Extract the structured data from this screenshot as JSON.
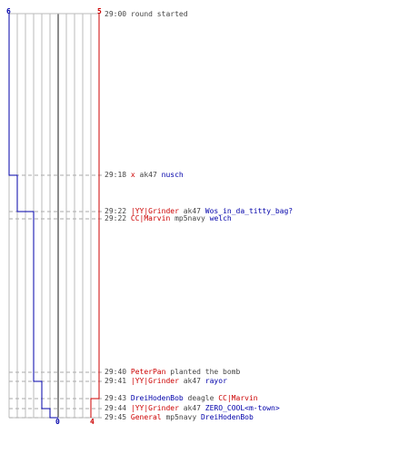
{
  "colors": {
    "blue_team": "#0000aa",
    "red_team": "#cc0000",
    "neutral_text": "#444444",
    "grid": "#bbbbbb",
    "center_line": "#666666",
    "dashed": "#aaaaaa"
  },
  "scores": {
    "blue_start": "6",
    "red_start": "5",
    "blue_end": "0",
    "red_end": "4"
  },
  "events": [
    {
      "time": "29:00",
      "segments": [
        {
          "text": "round started",
          "color": "neutral"
        }
      ]
    },
    {
      "time": "29:18",
      "segments": [
        {
          "text": "x",
          "color": "red"
        },
        {
          "text": " ak47 ",
          "color": "neutral"
        },
        {
          "text": "nusch",
          "color": "blue"
        }
      ]
    },
    {
      "time": "29:22",
      "segments": [
        {
          "text": "|YY|Grinder",
          "color": "red"
        },
        {
          "text": " ak47 ",
          "color": "neutral"
        },
        {
          "text": "Wos_in_da_titty_bag?",
          "color": "blue"
        }
      ]
    },
    {
      "time": "29:22",
      "segments": [
        {
          "text": "CC|Marvin",
          "color": "red"
        },
        {
          "text": " mp5navy ",
          "color": "neutral"
        },
        {
          "text": "welch",
          "color": "blue"
        }
      ]
    },
    {
      "time": "29:40",
      "segments": [
        {
          "text": "PeterPan",
          "color": "red"
        },
        {
          "text": " planted the bomb",
          "color": "neutral"
        }
      ]
    },
    {
      "time": "29:41",
      "segments": [
        {
          "text": "|YY|Grinder",
          "color": "red"
        },
        {
          "text": " ak47 ",
          "color": "neutral"
        },
        {
          "text": "rayor",
          "color": "blue"
        }
      ]
    },
    {
      "time": "29:43",
      "segments": [
        {
          "text": "DreiHodenBob",
          "color": "blue"
        },
        {
          "text": " deagle ",
          "color": "neutral"
        },
        {
          "text": "CC|Marvin",
          "color": "red"
        }
      ]
    },
    {
      "time": "29:44",
      "segments": [
        {
          "text": "|YY|Grinder",
          "color": "red"
        },
        {
          "text": " ak47 ",
          "color": "neutral"
        },
        {
          "text": "ZERO_COOL<m-town>",
          "color": "blue"
        }
      ]
    },
    {
      "time": "29:45",
      "segments": [
        {
          "text": "General",
          "color": "red"
        },
        {
          "text": " mp5navy ",
          "color": "neutral"
        },
        {
          "text": "DreiHodenBob",
          "color": "blue"
        }
      ]
    }
  ]
}
